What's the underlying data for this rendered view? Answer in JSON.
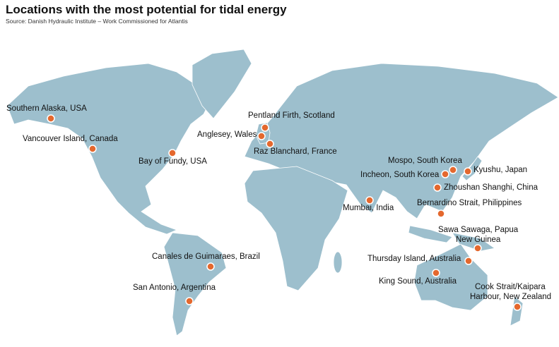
{
  "header": {
    "title": "Locations with the most potential for tidal energy",
    "source": "Source: Danish Hydraulic Institute – Work Commissioned for Atlantis"
  },
  "locations": [
    {
      "label": [
        "Southern Alaska, USA"
      ]
    },
    {
      "label": [
        "Vancouver Island, Canada"
      ]
    },
    {
      "label": [
        "Bay of Fundy, USA"
      ]
    },
    {
      "label": [
        "Pentland Firth, Scotland"
      ]
    },
    {
      "label": [
        "Anglesey, Wales"
      ]
    },
    {
      "label": [
        "Raz Blanchard, France"
      ]
    },
    {
      "label": [
        "Mospo, South Korea"
      ]
    },
    {
      "label": [
        "Incheon, South Korea"
      ]
    },
    {
      "label": [
        "Kyushu, Japan"
      ]
    },
    {
      "label": [
        "Zhoushan Shanghi, China"
      ]
    },
    {
      "label": [
        "Mumbai, India"
      ]
    },
    {
      "label": [
        "Bernardino Strait, Philippines"
      ]
    },
    {
      "label": [
        "Sawa Sawaga, Papua",
        "New Guinea"
      ]
    },
    {
      "label": [
        "Thursday Island, Australia"
      ]
    },
    {
      "label": [
        "King Sound, Australia"
      ]
    },
    {
      "label": [
        "Cook Strait/Kaipara",
        "Harbour, New Zealand"
      ]
    },
    {
      "label": [
        "Canales de Guimaraes, Brazil"
      ]
    },
    {
      "label": [
        "San Antonio, Argentina"
      ]
    }
  ]
}
